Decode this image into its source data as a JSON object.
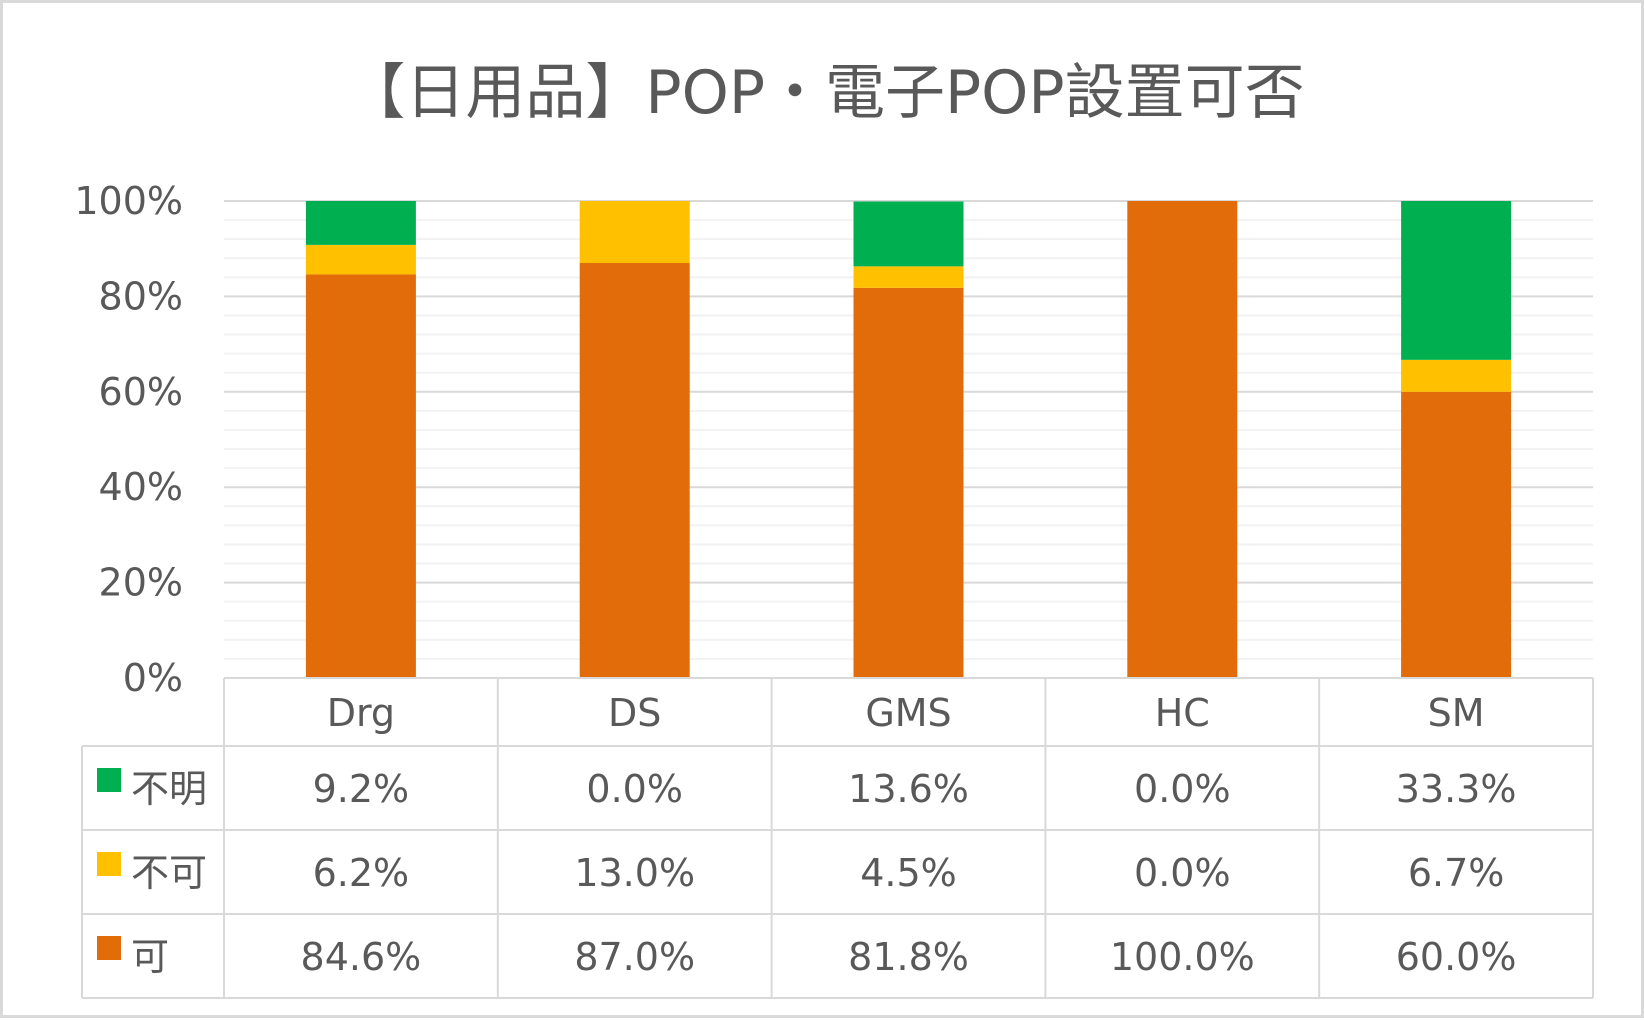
{
  "chart_data": {
    "type": "bar",
    "stacked": true,
    "title": "【日用品】POP・電子POP設置可否",
    "categories": [
      "Drg",
      "DS",
      "GMS",
      "HC",
      "SM"
    ],
    "series": [
      {
        "name": "可",
        "color": "#e36c0a",
        "values": [
          84.6,
          87.0,
          81.8,
          100.0,
          60.0
        ],
        "labels": [
          "84.6%",
          "87.0%",
          "81.8%",
          "100.0%",
          "60.0%"
        ]
      },
      {
        "name": "不可",
        "color": "#ffc000",
        "values": [
          6.2,
          13.0,
          4.5,
          0.0,
          6.7
        ],
        "labels": [
          "6.2%",
          "13.0%",
          "4.5%",
          "0.0%",
          "6.7%"
        ]
      },
      {
        "name": "不明",
        "color": "#00b050",
        "values": [
          9.2,
          0.0,
          13.6,
          0.0,
          33.3
        ],
        "labels": [
          "9.2%",
          "0.0%",
          "13.6%",
          "0.0%",
          "33.3%"
        ]
      }
    ],
    "yticks": [
      "0%",
      "20%",
      "40%",
      "60%",
      "80%",
      "100%"
    ],
    "ylim": [
      0,
      100
    ],
    "grid": true,
    "legend": "data-table-left"
  }
}
